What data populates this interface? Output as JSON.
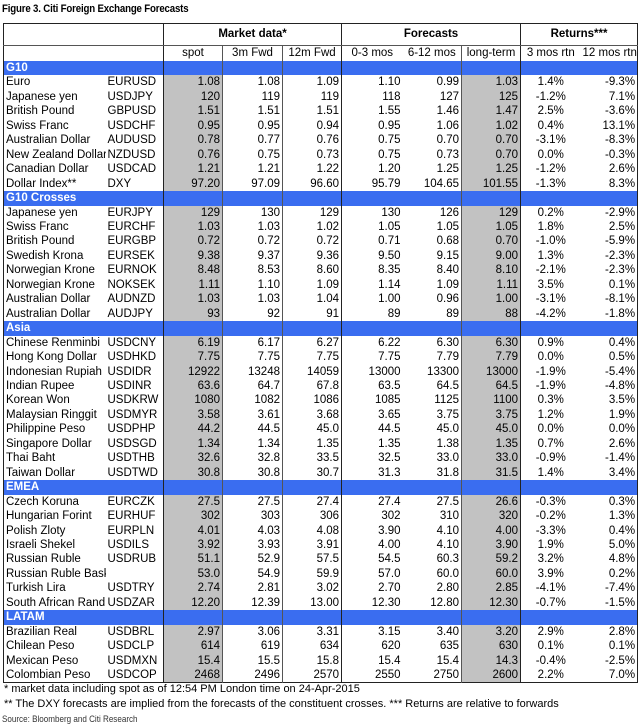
{
  "title": "Figure 3. Citi Foreign Exchange Forecasts",
  "header": {
    "groups": [
      "Market data*",
      "Forecasts",
      "Returns***"
    ],
    "columns": [
      "spot",
      "3m Fwd",
      "12m Fwd",
      "0-3 mos",
      "6-12 mos",
      "long-term",
      "3 mos rtn",
      "12 mos rtn"
    ]
  },
  "colors": {
    "band": "#3a6df0",
    "shaded": "#c2c2c2"
  },
  "sections": [
    {
      "name": "G10",
      "rows": [
        [
          "Euro",
          "EURUSD",
          "1.08",
          "1.08",
          "1.09",
          "1.10",
          "0.99",
          "1.03",
          "1.4%",
          "-9.3%"
        ],
        [
          "Japanese yen",
          "USDJPY",
          "120",
          "119",
          "119",
          "118",
          "127",
          "125",
          "-1.2%",
          "7.1%"
        ],
        [
          "British Pound",
          "GBPUSD",
          "1.51",
          "1.51",
          "1.51",
          "1.55",
          "1.46",
          "1.47",
          "2.5%",
          "-3.6%"
        ],
        [
          "Swiss Franc",
          "USDCHF",
          "0.95",
          "0.95",
          "0.94",
          "0.95",
          "1.06",
          "1.02",
          "0.4%",
          "13.1%"
        ],
        [
          "Australian Dollar",
          "AUDUSD",
          "0.78",
          "0.77",
          "0.76",
          "0.75",
          "0.70",
          "0.70",
          "-3.1%",
          "-8.3%"
        ],
        [
          "New Zealand Dollar",
          "NZDUSD",
          "0.76",
          "0.75",
          "0.73",
          "0.75",
          "0.73",
          "0.70",
          "0.0%",
          "-0.3%"
        ],
        [
          "Canadian Dollar",
          "USDCAD",
          "1.21",
          "1.21",
          "1.22",
          "1.20",
          "1.25",
          "1.25",
          "-1.2%",
          "2.6%"
        ],
        [
          "Dollar Index**",
          "DXY",
          "97.20",
          "97.09",
          "96.60",
          "95.79",
          "104.65",
          "101.55",
          "-1.3%",
          "8.3%"
        ]
      ]
    },
    {
      "name": "G10 Crosses",
      "rows": [
        [
          "Japanese yen",
          "EURJPY",
          "129",
          "130",
          "129",
          "130",
          "126",
          "129",
          "0.2%",
          "-2.9%"
        ],
        [
          "Swiss Franc",
          "EURCHF",
          "1.03",
          "1.03",
          "1.02",
          "1.05",
          "1.05",
          "1.05",
          "1.8%",
          "2.5%"
        ],
        [
          "British Pound",
          "EURGBP",
          "0.72",
          "0.72",
          "0.72",
          "0.71",
          "0.68",
          "0.70",
          "-1.0%",
          "-5.9%"
        ],
        [
          "Swedish Krona",
          "EURSEK",
          "9.38",
          "9.37",
          "9.36",
          "9.50",
          "9.15",
          "9.00",
          "1.3%",
          "-2.3%"
        ],
        [
          "Norwegian Krone",
          "EURNOK",
          "8.48",
          "8.53",
          "8.60",
          "8.35",
          "8.40",
          "8.10",
          "-2.1%",
          "-2.3%"
        ],
        [
          "Norwegian Krone",
          "NOKSEK",
          "1.11",
          "1.10",
          "1.09",
          "1.14",
          "1.09",
          "1.11",
          "3.5%",
          "0.1%"
        ],
        [
          "Australian Dollar",
          "AUDNZD",
          "1.03",
          "1.03",
          "1.04",
          "1.00",
          "0.96",
          "1.00",
          "-3.1%",
          "-8.1%"
        ],
        [
          "Australian Dollar",
          "AUDJPY",
          "93",
          "92",
          "91",
          "89",
          "89",
          "88",
          "-4.2%",
          "-1.8%"
        ]
      ]
    },
    {
      "name": "Asia",
      "rows": [
        [
          "Chinese Renminbi",
          "USDCNY",
          "6.19",
          "6.17",
          "6.27",
          "6.22",
          "6.30",
          "6.30",
          "0.9%",
          "0.4%"
        ],
        [
          "Hong Kong Dollar",
          "USDHKD",
          "7.75",
          "7.75",
          "7.75",
          "7.75",
          "7.79",
          "7.79",
          "0.0%",
          "0.5%"
        ],
        [
          "Indonesian Rupiah",
          "USDIDR",
          "12922",
          "13248",
          "14059",
          "13000",
          "13300",
          "13000",
          "-1.9%",
          "-5.4%"
        ],
        [
          "Indian Rupee",
          "USDINR",
          "63.6",
          "64.7",
          "67.8",
          "63.5",
          "64.5",
          "64.5",
          "-1.9%",
          "-4.8%"
        ],
        [
          "Korean Won",
          "USDKRW",
          "1080",
          "1082",
          "1086",
          "1085",
          "1125",
          "1100",
          "0.3%",
          "3.5%"
        ],
        [
          "Malaysian Ringgit",
          "USDMYR",
          "3.58",
          "3.61",
          "3.68",
          "3.65",
          "3.75",
          "3.75",
          "1.2%",
          "1.9%"
        ],
        [
          "Philippine Peso",
          "USDPHP",
          "44.2",
          "44.5",
          "45.0",
          "44.5",
          "45.0",
          "45.0",
          "0.0%",
          "0.0%"
        ],
        [
          "Singapore Dollar",
          "USDSGD",
          "1.34",
          "1.34",
          "1.35",
          "1.35",
          "1.38",
          "1.35",
          "0.7%",
          "2.6%"
        ],
        [
          "Thai Baht",
          "USDTHB",
          "32.6",
          "32.8",
          "33.5",
          "32.5",
          "33.0",
          "33.0",
          "-0.9%",
          "-1.4%"
        ],
        [
          "Taiwan Dollar",
          "USDTWD",
          "30.8",
          "30.8",
          "30.7",
          "31.3",
          "31.8",
          "31.5",
          "1.4%",
          "3.4%"
        ]
      ]
    },
    {
      "name": "EMEA",
      "rows": [
        [
          "Czech Koruna",
          "EURCZK",
          "27.5",
          "27.5",
          "27.4",
          "27.4",
          "27.5",
          "26.6",
          "-0.3%",
          "0.3%"
        ],
        [
          "Hungarian Forint",
          "EURHUF",
          "302",
          "303",
          "306",
          "302",
          "310",
          "320",
          "-0.2%",
          "1.3%"
        ],
        [
          "Polish Zloty",
          "EURPLN",
          "4.01",
          "4.03",
          "4.08",
          "3.90",
          "4.10",
          "4.00",
          "-3.3%",
          "0.4%"
        ],
        [
          "Israeli Shekel",
          "USDILS",
          "3.92",
          "3.93",
          "3.91",
          "4.00",
          "4.10",
          "3.90",
          "1.9%",
          "5.0%"
        ],
        [
          "Russian Ruble",
          "USDRUB",
          "51.1",
          "52.9",
          "57.5",
          "54.5",
          "60.3",
          "59.2",
          "3.2%",
          "4.8%"
        ],
        [
          "Russian Ruble Basket",
          "",
          "53.0",
          "54.9",
          "59.9",
          "57.0",
          "60.0",
          "60.0",
          "3.9%",
          "0.2%"
        ],
        [
          "Turkish Lira",
          "USDTRY",
          "2.74",
          "2.81",
          "3.02",
          "2.70",
          "2.80",
          "2.85",
          "-4.1%",
          "-7.4%"
        ],
        [
          "South African Rand",
          "USDZAR",
          "12.20",
          "12.39",
          "13.00",
          "12.30",
          "12.80",
          "12.30",
          "-0.7%",
          "-1.5%"
        ]
      ]
    },
    {
      "name": "LATAM",
      "rows": [
        [
          "Brazilian Real",
          "USDBRL",
          "2.97",
          "3.06",
          "3.31",
          "3.15",
          "3.40",
          "3.20",
          "2.9%",
          "2.8%"
        ],
        [
          "Chilean Peso",
          "USDCLP",
          "614",
          "619",
          "634",
          "620",
          "635",
          "630",
          "0.1%",
          "0.1%"
        ],
        [
          "Mexican Peso",
          "USDMXN",
          "15.4",
          "15.5",
          "15.8",
          "15.4",
          "15.4",
          "14.3",
          "-0.4%",
          "-2.5%"
        ],
        [
          "Colombian Peso",
          "USDCOP",
          "2468",
          "2496",
          "2570",
          "2550",
          "2750",
          "2600",
          "2.2%",
          "7.0%"
        ]
      ]
    }
  ],
  "notes": [
    "* market data including spot as of 12:54 PM London time on 24-Apr-2015",
    "** The DXY forecasts are implied from the forecasts of the constituent crosses. *** Returns are relative to forwards"
  ],
  "source": "Source: Bloomberg and Citi Research"
}
